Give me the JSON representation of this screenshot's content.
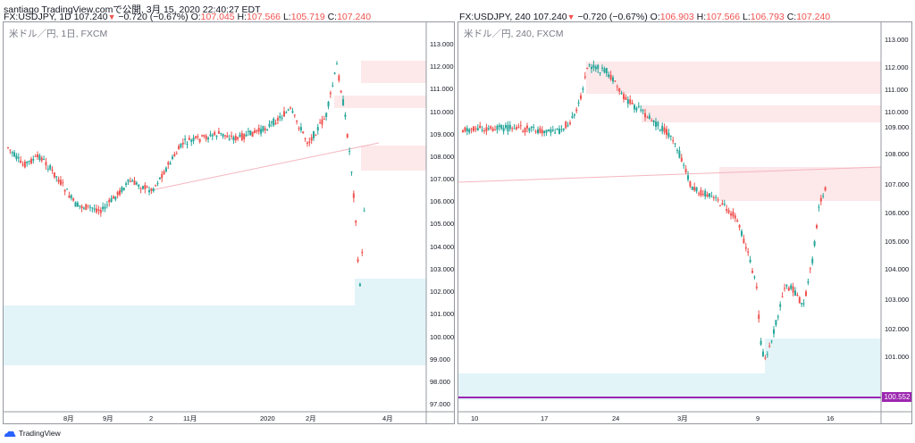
{
  "header": {
    "line1": "santiago TradingView.comで公開, 3月 15, 2020 22:40:27 EDT",
    "left": {
      "sym": "FX:USDJPY, 1D",
      "last": "107.240",
      "change": "−0.720 (−0.67%)",
      "o_label": "O:",
      "o": "107.045",
      "h_label": "H:",
      "h": "107.566",
      "l_label": "L:",
      "l": "105.719",
      "c_label": "C:",
      "c": "107.240"
    },
    "right": {
      "sym": "FX:USDJPY, 240",
      "last": "107.240",
      "change": "−0.720 (−0.67%)",
      "o_label": "O:",
      "o": "106.903",
      "h_label": "H:",
      "h": "107.566",
      "l_label": "L:",
      "l": "106.793",
      "c_label": "C:",
      "c": "107.240"
    }
  },
  "left_chart": {
    "title": "米ドル／円, 1日, FXCM",
    "price_labels": [
      "113.000",
      "112.000",
      "111.000",
      "110.000",
      "109.000",
      "108.000",
      "107.000",
      "106.000",
      "105.000",
      "104.000",
      "103.000",
      "102.000",
      "101.000",
      "100.000",
      "99.000",
      "98.000",
      "97.000"
    ],
    "time_labels": [
      "8月",
      "9月",
      "2",
      "11月",
      "2020",
      "2月",
      "4月"
    ]
  },
  "right_chart": {
    "title": "米ドル／円, 240, FXCM",
    "price_labels": [
      "113.000",
      "112.000",
      "111.000",
      "110.000",
      "109.000",
      "108.000",
      "107.000",
      "106.000",
      "105.000",
      "104.000",
      "103.000",
      "102.000",
      "101.000"
    ],
    "time_labels": [
      "10",
      "17",
      "24",
      "3月",
      "9",
      "16"
    ],
    "line_price": "100.552"
  },
  "colors": {
    "up": "#26a69a",
    "down": "#ef5350",
    "supply_zone": "#fde8ea",
    "demand_zone": "#e3f4f8",
    "hline": "#9c27b0"
  },
  "footer": {
    "brand": "TradingView"
  }
}
